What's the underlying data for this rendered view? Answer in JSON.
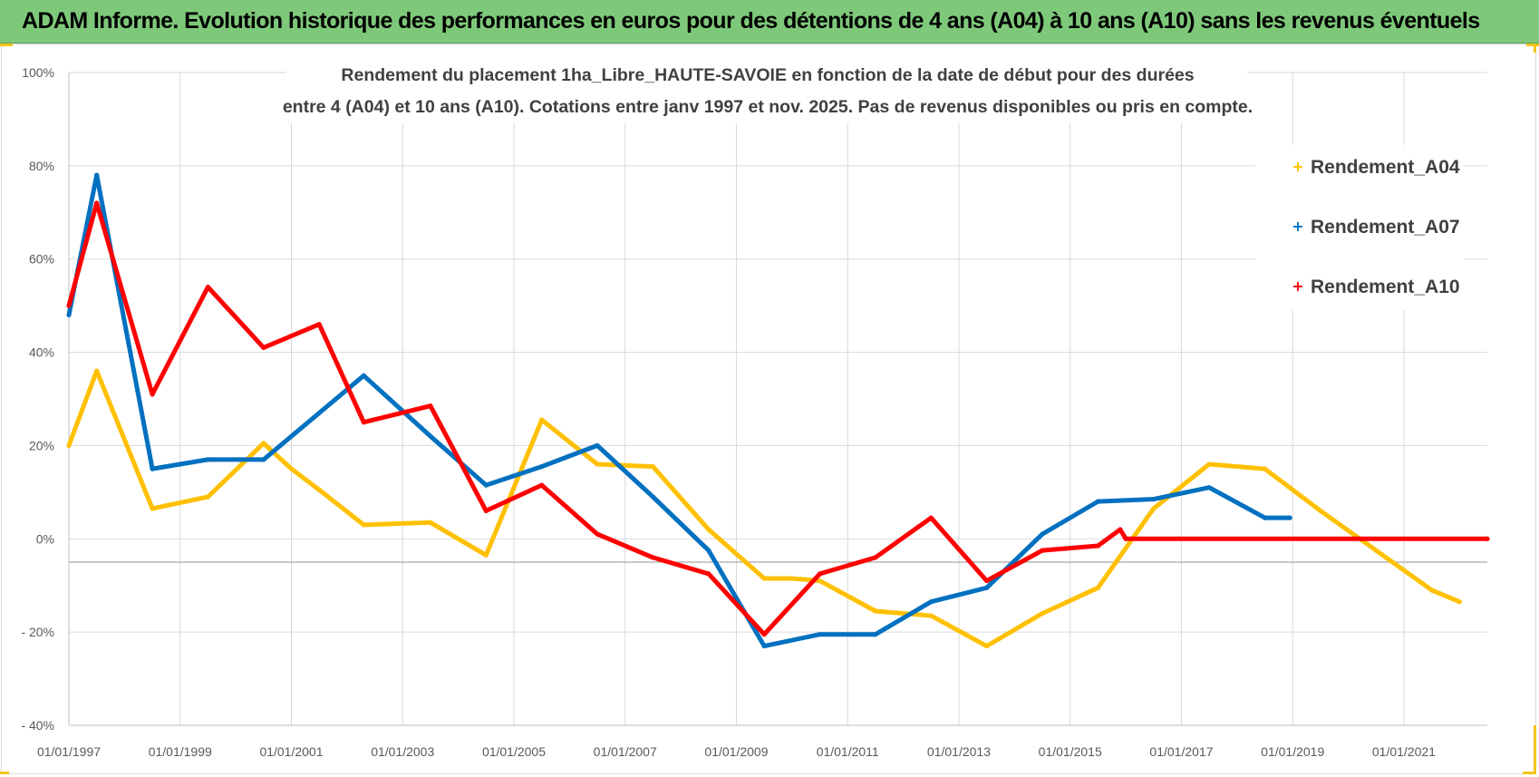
{
  "header": {
    "banner": "ADAM Informe. Evolution historique des performances en euros pour des détentions de 4 ans (A04) à 10 ans (A10) sans les revenus éventuels"
  },
  "chart_data": {
    "type": "line",
    "title": [
      "Rendement du placement 1ha_Libre_HAUTE-SAVOIE en fonction de la date de début pour des durées",
      "entre 4 (A04) et 10 ans (A10). Cotations entre janv 1997 et nov. 2025. Pas de revenus disponibles ou pris en compte."
    ],
    "xlabel": "",
    "ylabel": "",
    "xlim": [
      1997.0,
      2022.5
    ],
    "ylim": [
      -40,
      100
    ],
    "y_ticks": [
      100,
      80,
      60,
      40,
      20,
      0,
      -20,
      -40
    ],
    "y_tick_labels": [
      "100%",
      "80%",
      "60%",
      "40%",
      "20%",
      "0%",
      "- 20%",
      "- 40%"
    ],
    "x_ticks": [
      1997,
      1999,
      2001,
      2003,
      2005,
      2007,
      2009,
      2011,
      2013,
      2015,
      2017,
      2019,
      2021
    ],
    "x_tick_labels": [
      "01/01/1997",
      "01/01/1999",
      "01/01/2001",
      "01/01/2003",
      "01/01/2005",
      "01/01/2007",
      "01/01/2009",
      "01/01/2011",
      "01/01/2013",
      "01/01/2015",
      "01/01/2017",
      "01/01/2019",
      "01/01/2021"
    ],
    "legend_position": "top-right",
    "series": [
      {
        "name": "Rendement_A04",
        "color": "#ffc000",
        "x": [
          1997.0,
          1997.5,
          1998.5,
          1999.5,
          2000.5,
          2001.0,
          2001.5,
          2002.3,
          2003.5,
          2004.5,
          2005.5,
          2006.5,
          2007.5,
          2008.5,
          2009.5,
          2010.0,
          2010.5,
          2011.5,
          2012.5,
          2013.5,
          2014.5,
          2015.5,
          2016.5,
          2017.5,
          2018.5,
          2019.5,
          2020.5,
          2021.5,
          2022.0
        ],
        "y": [
          20,
          36,
          6.5,
          9,
          20.5,
          15,
          10.5,
          3,
          3.5,
          -3.5,
          25.5,
          16,
          15.5,
          2,
          -8.5,
          -8.5,
          -9,
          -15.5,
          -16.5,
          -23,
          -16,
          -10.5,
          6.5,
          16,
          15,
          6,
          -2.5,
          -11,
          -13.5
        ]
      },
      {
        "name": "Rendement_A07",
        "color": "#0070c0",
        "x": [
          1997.0,
          1997.5,
          1998.5,
          1999.0,
          1999.5,
          2000.5,
          2002.3,
          2003.5,
          2004.5,
          2005.5,
          2006.5,
          2007.5,
          2008.5,
          2009.5,
          2010.5,
          2011.5,
          2012.5,
          2013.5,
          2014.5,
          2015.5,
          2016.5,
          2017.5,
          2018.5,
          2018.95
        ],
        "y": [
          48,
          78,
          15,
          16,
          17,
          17,
          35,
          22,
          11.5,
          15.5,
          20,
          9,
          -2.5,
          -23,
          -20.5,
          -20.5,
          -13.5,
          -10.5,
          1,
          8,
          8.5,
          11,
          4.5,
          4.5
        ]
      },
      {
        "name": "Rendement_A10",
        "color": "#ff0000",
        "x": [
          1997.0,
          1997.5,
          1998.5,
          1999.5,
          2000.5,
          2001.5,
          2002.3,
          2003.5,
          2004.5,
          2005.5,
          2006.5,
          2007.5,
          2008.5,
          2009.5,
          2010.5,
          2011.5,
          2012.5,
          2013.5,
          2014.5,
          2015.5,
          2015.9,
          2016.0,
          2022.5
        ],
        "y": [
          50,
          72,
          31,
          54,
          41,
          46,
          25,
          28.5,
          6,
          11.5,
          1,
          -4,
          -7.5,
          -20.5,
          -7.5,
          -4,
          4.5,
          -9,
          -2.5,
          -1.5,
          2,
          0,
          0
        ]
      }
    ]
  }
}
